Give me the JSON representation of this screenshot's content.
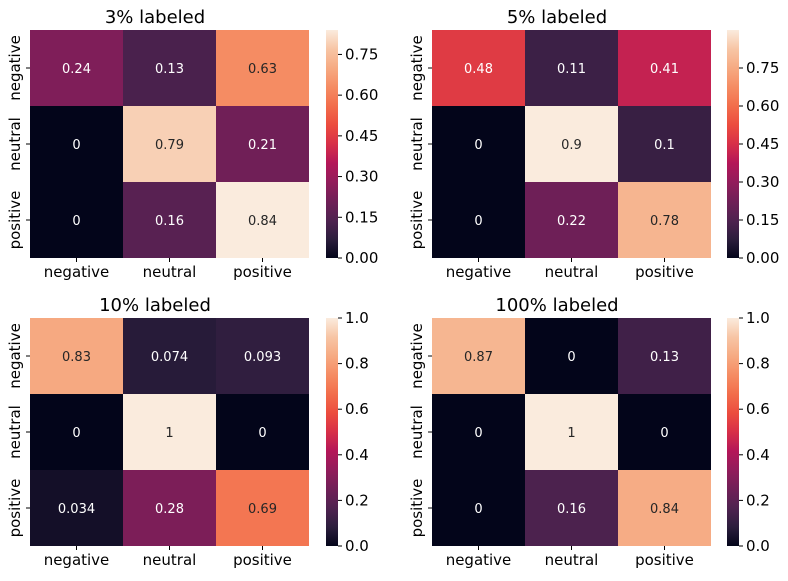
{
  "chart_data": [
    {
      "type": "heatmap",
      "title": "3% labeled",
      "categories": [
        "negative",
        "neutral",
        "positive"
      ],
      "matrix": [
        [
          0.24,
          0.13,
          0.63
        ],
        [
          0,
          0.79,
          0.21
        ],
        [
          0,
          0.16,
          0.84
        ]
      ],
      "labels": [
        [
          "0.24",
          "0.13",
          "0.63"
        ],
        [
          "0",
          "0.79",
          "0.21"
        ],
        [
          "0",
          "0.16",
          "0.84"
        ]
      ],
      "vmin": 0,
      "vmax": 0.84,
      "colorbar_ticks": [
        0.0,
        0.15,
        0.3,
        0.45,
        0.6,
        0.75
      ],
      "colorbar_labels": [
        "0.00",
        "0.15",
        "0.30",
        "0.45",
        "0.60",
        "0.75"
      ]
    },
    {
      "type": "heatmap",
      "title": "5% labeled",
      "categories": [
        "negative",
        "neutral",
        "positive"
      ],
      "matrix": [
        [
          0.48,
          0.11,
          0.41
        ],
        [
          0,
          0.9,
          0.1
        ],
        [
          0,
          0.22,
          0.78
        ]
      ],
      "labels": [
        [
          "0.48",
          "0.11",
          "0.41"
        ],
        [
          "0",
          "0.9",
          "0.1"
        ],
        [
          "0",
          "0.22",
          "0.78"
        ]
      ],
      "vmin": 0,
      "vmax": 0.9,
      "colorbar_ticks": [
        0.0,
        0.15,
        0.3,
        0.45,
        0.6,
        0.75
      ],
      "colorbar_labels": [
        "0.00",
        "0.15",
        "0.30",
        "0.45",
        "0.60",
        "0.75"
      ]
    },
    {
      "type": "heatmap",
      "title": "10% labeled",
      "categories": [
        "negative",
        "neutral",
        "positive"
      ],
      "matrix": [
        [
          0.83,
          0.074,
          0.093
        ],
        [
          0,
          1,
          0
        ],
        [
          0.034,
          0.28,
          0.69
        ]
      ],
      "labels": [
        [
          "0.83",
          "0.074",
          "0.093"
        ],
        [
          "0",
          "1",
          "0"
        ],
        [
          "0.034",
          "0.28",
          "0.69"
        ]
      ],
      "vmin": 0,
      "vmax": 1.0,
      "colorbar_ticks": [
        0.0,
        0.2,
        0.4,
        0.6,
        0.8,
        1.0
      ],
      "colorbar_labels": [
        "0.0",
        "0.2",
        "0.4",
        "0.6",
        "0.8",
        "1.0"
      ]
    },
    {
      "type": "heatmap",
      "title": "100% labeled",
      "categories": [
        "negative",
        "neutral",
        "positive"
      ],
      "matrix": [
        [
          0.87,
          0,
          0.13
        ],
        [
          0,
          1,
          0
        ],
        [
          0,
          0.16,
          0.84
        ]
      ],
      "labels": [
        [
          "0.87",
          "0",
          "0.13"
        ],
        [
          "0",
          "1",
          "0"
        ],
        [
          "0",
          "0.16",
          "0.84"
        ]
      ],
      "vmin": 0,
      "vmax": 1.0,
      "colorbar_ticks": [
        0.0,
        0.2,
        0.4,
        0.6,
        0.8,
        1.0
      ],
      "colorbar_labels": [
        "0.0",
        "0.2",
        "0.4",
        "0.6",
        "0.8",
        "1.0"
      ]
    }
  ],
  "colormap": {
    "name": "rocket",
    "stops": [
      "#03051a",
      "#2c1e3d",
      "#4f2250",
      "#701f57",
      "#921c5b",
      "#b41658",
      "#d72f48",
      "#ec4c3e",
      "#f26d4b",
      "#f58c63",
      "#f6aa82",
      "#f7c5a5",
      "#faebdd"
    ]
  }
}
